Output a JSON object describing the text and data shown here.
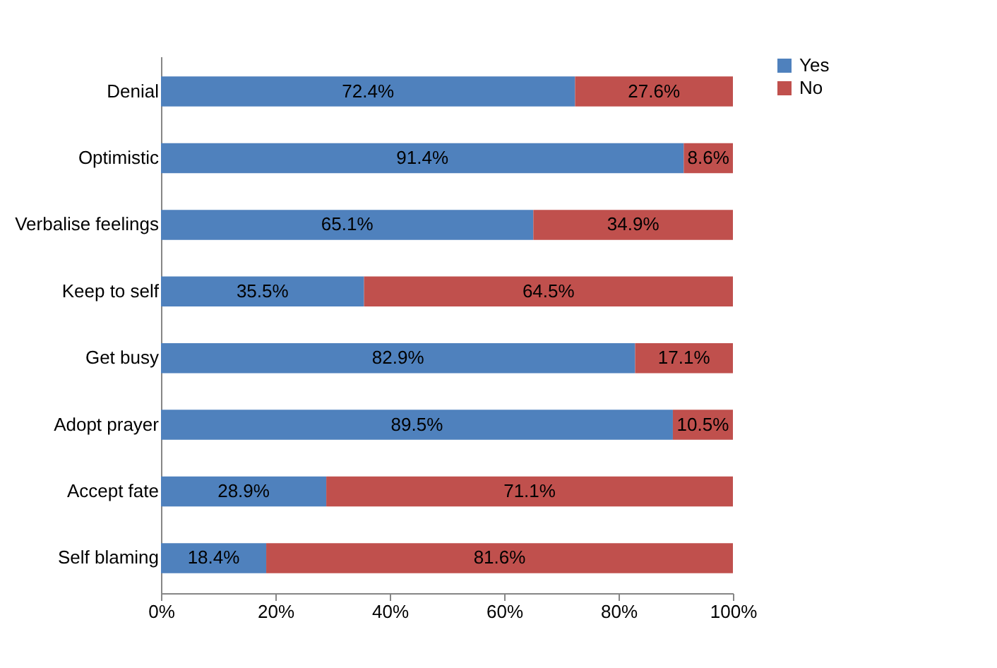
{
  "chart_data": {
    "type": "bar",
    "orientation": "horizontal",
    "stacked": true,
    "categories": [
      "Denial",
      "Optimistic",
      "Verbalise feelings",
      "Keep to self",
      "Get busy",
      "Adopt prayer",
      "Accept fate",
      "Self blaming"
    ],
    "series": [
      {
        "name": "Yes",
        "color": "#4f81bd",
        "values": [
          72.4,
          91.4,
          65.1,
          35.5,
          82.9,
          89.5,
          28.9,
          18.4
        ],
        "value_labels": [
          "72.4%",
          "91.4%",
          "65.1%",
          "35.5%",
          "82.9%",
          "89.5%",
          "28.9%",
          "18.4%"
        ]
      },
      {
        "name": "No",
        "color": "#c0504d",
        "values": [
          27.6,
          8.6,
          34.9,
          64.5,
          17.1,
          10.5,
          71.1,
          81.6
        ],
        "value_labels": [
          "27.6%",
          "8.6%",
          "34.9%",
          "64.5%",
          "17.1%",
          "10.5%",
          "71.1%",
          "81.6%"
        ]
      }
    ],
    "xlim": [
      0,
      100
    ],
    "xticks": [
      {
        "value": 0,
        "label": "0%"
      },
      {
        "value": 20,
        "label": "20%"
      },
      {
        "value": 40,
        "label": "40%"
      },
      {
        "value": 60,
        "label": "60%"
      },
      {
        "value": 80,
        "label": "80%"
      },
      {
        "value": 100,
        "label": "100%"
      }
    ],
    "grid": false,
    "legend": "right"
  }
}
